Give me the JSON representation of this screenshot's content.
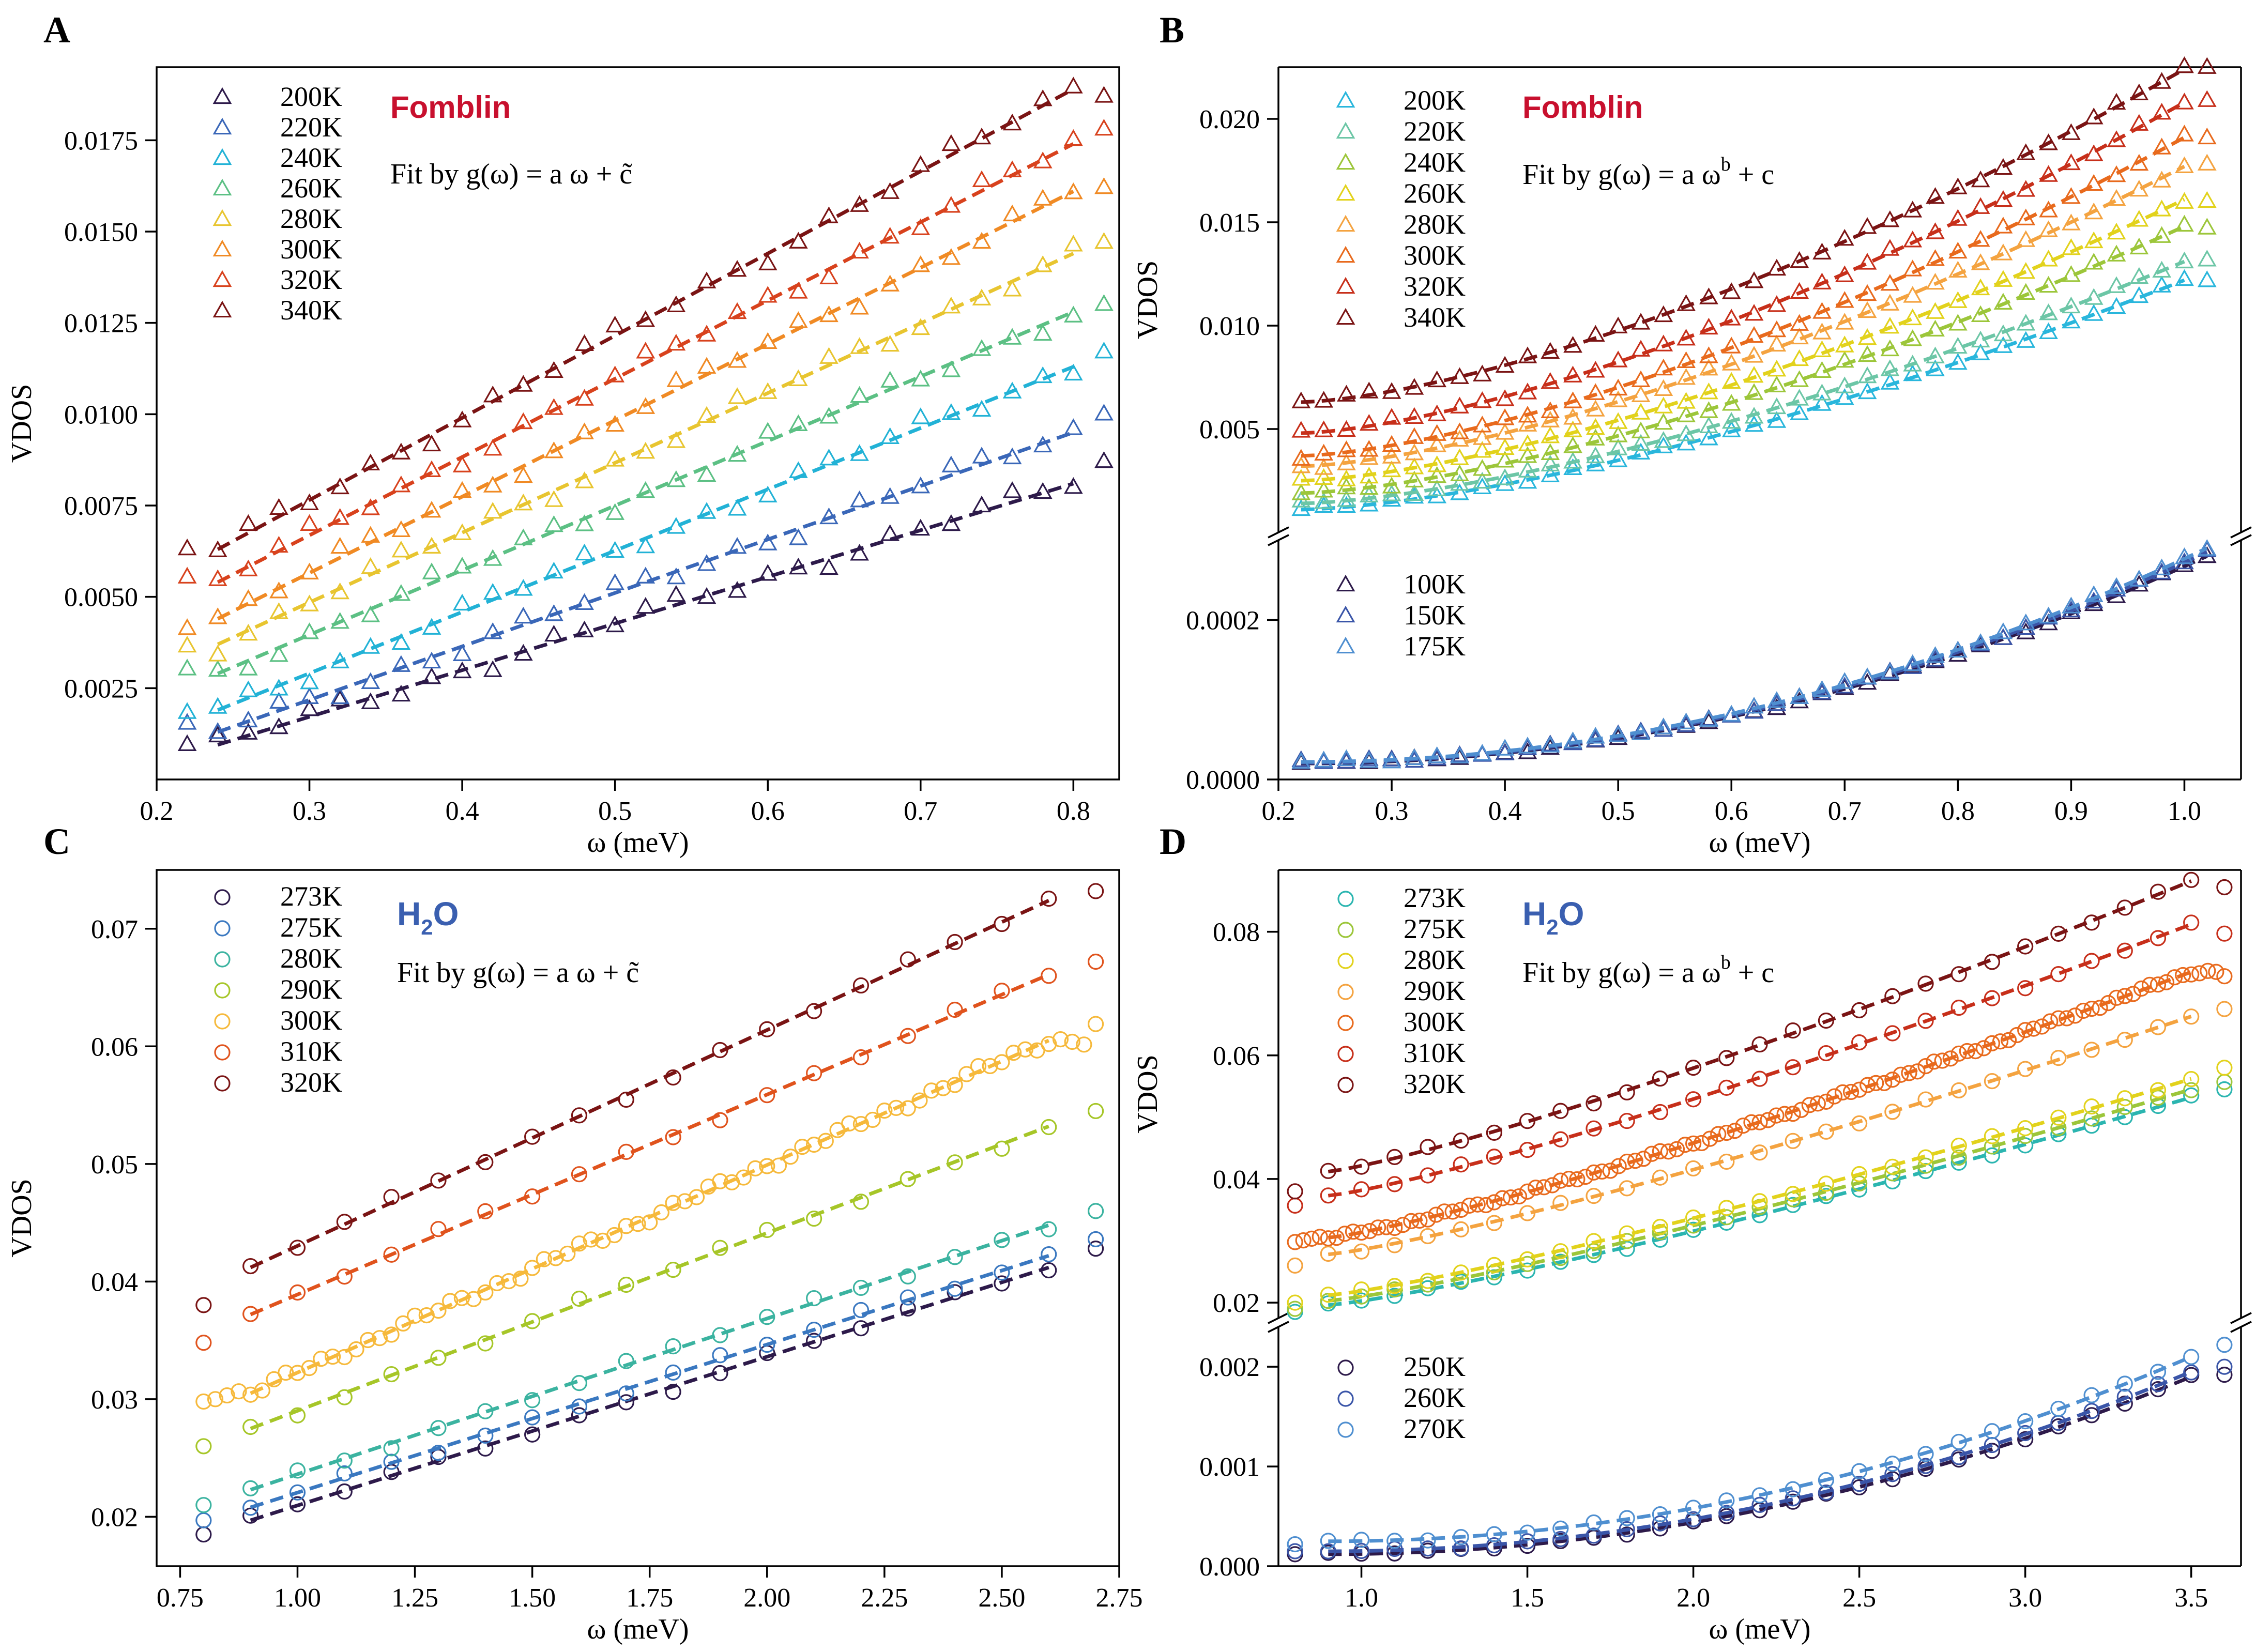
{
  "figure": {
    "panel_labels": [
      "A",
      "B",
      "C",
      "D"
    ]
  },
  "chart_data": [
    {
      "panel": "A",
      "type": "scatter",
      "marker": "triangle",
      "title": "Fomblin",
      "title_color": "#C8102E",
      "fit_text": "Fit by g(ω) = a ω + c̃",
      "xlabel": "ω (meV)",
      "ylabel": "VDOS",
      "xlim": [
        0.2,
        0.83
      ],
      "ylim": [
        0.0,
        0.0195
      ],
      "xticks": [
        0.2,
        0.3,
        0.4,
        0.5,
        0.6,
        0.7,
        0.8
      ],
      "xtick_labels": [
        "0.2",
        "0.3",
        "0.4",
        "0.5",
        "0.6",
        "0.7",
        "0.8"
      ],
      "yticks": [
        0.0025,
        0.005,
        0.0075,
        0.01,
        0.0125,
        0.015,
        0.0175
      ],
      "ytick_labels": [
        "0.0025",
        "0.0050",
        "0.0075",
        "0.0100",
        "0.0125",
        "0.0150",
        "0.0175"
      ],
      "x": {
        "start": 0.22,
        "end": 0.82,
        "step": 0.02
      },
      "fit_range": [
        0.24,
        0.8
      ],
      "series": [
        {
          "name": "200K",
          "color": "#2d1a4a",
          "y0": 0.00095,
          "y1": 0.0081,
          "mark_offset": 0.0003,
          "end_mark": 0.0087
        },
        {
          "name": "220K",
          "color": "#3a67b8",
          "y0": 0.0013,
          "y1": 0.0095,
          "mark_offset": 0.0003,
          "end_mark": 0.01
        },
        {
          "name": "240K",
          "color": "#22b2d6",
          "y0": 0.0019,
          "y1": 0.0113,
          "mark_offset": 0.0003,
          "end_mark": 0.0117
        },
        {
          "name": "260K",
          "color": "#5cc084",
          "y0": 0.0029,
          "y1": 0.0128,
          "mark_offset": 0.0003,
          "end_mark": 0.013
        },
        {
          "name": "280K",
          "color": "#e8c530",
          "y0": 0.0037,
          "y1": 0.0144,
          "mark_offset": 0.0003,
          "end_mark": 0.0147
        },
        {
          "name": "300K",
          "color": "#f08a24",
          "y0": 0.0044,
          "y1": 0.0161,
          "mark_offset": 0.0003,
          "end_mark": 0.0162
        },
        {
          "name": "320K",
          "color": "#d8421d",
          "y0": 0.0054,
          "y1": 0.0174,
          "mark_offset": 0.0003,
          "end_mark": 0.0178
        },
        {
          "name": "340K",
          "color": "#7a1414",
          "y0": 0.0063,
          "y1": 0.0189,
          "mark_offset": 0.0003,
          "end_mark": 0.0187
        }
      ]
    },
    {
      "panel": "B",
      "type": "scatter",
      "marker": "triangle",
      "title": "Fomblin",
      "title_color": "#C8102E",
      "fit_text": "Fit by g(ω) = a ω",
      "fit_sup": "b",
      "fit_tail": " + c",
      "xlabel": "ω (meV)",
      "ylabel": "VDOS",
      "xlim": [
        0.2,
        1.05
      ],
      "xticks": [
        0.2,
        0.3,
        0.4,
        0.5,
        0.6,
        0.7,
        0.8,
        0.9,
        1.0
      ],
      "xtick_labels": [
        "0.2",
        "0.3",
        "0.4",
        "0.5",
        "0.6",
        "0.7",
        "0.8",
        "0.9",
        "1.0"
      ],
      "upper": {
        "ylim": [
          0.0,
          0.0225
        ],
        "yticks": [
          0.005,
          0.01,
          0.015,
          0.02
        ],
        "ytick_labels": [
          "0.005",
          "0.010",
          "0.015",
          "0.020"
        ],
        "x": {
          "start": 0.22,
          "end": 1.02,
          "step": 0.02
        },
        "fit_range": [
          0.22,
          1.0
        ],
        "exponent": 1.5,
        "series": [
          {
            "name": "200K",
            "color": "#29b6dc",
            "y0": 0.0011,
            "y1": 0.0122
          },
          {
            "name": "220K",
            "color": "#6cc6a6",
            "y0": 0.0014,
            "y1": 0.0131
          },
          {
            "name": "240K",
            "color": "#9cc63a",
            "y0": 0.0019,
            "y1": 0.0148
          },
          {
            "name": "260K",
            "color": "#e2d21c",
            "y0": 0.0025,
            "y1": 0.0161
          },
          {
            "name": "280K",
            "color": "#f4a340",
            "y0": 0.0032,
            "y1": 0.0177
          },
          {
            "name": "300K",
            "color": "#e86a1d",
            "y0": 0.0037,
            "y1": 0.0191
          },
          {
            "name": "320K",
            "color": "#c72f1a",
            "y0": 0.0048,
            "y1": 0.0208
          },
          {
            "name": "340K",
            "color": "#7a1414",
            "y0": 0.0063,
            "y1": 0.0224
          }
        ]
      },
      "lower": {
        "ylim": [
          0.0,
          0.0003
        ],
        "yticks": [
          0.0,
          0.0002
        ],
        "ytick_labels": [
          "0.0000",
          "0.0002"
        ],
        "x": {
          "start": 0.22,
          "end": 1.02,
          "step": 0.02
        },
        "fit_range": [
          0.22,
          1.02
        ],
        "exponent": 2.0,
        "series": [
          {
            "name": "100K",
            "color": "#2d1a4a",
            "y0": 2e-05,
            "y1": 0.00028
          },
          {
            "name": "150K",
            "color": "#3a55a8",
            "y0": 2.1e-05,
            "y1": 0.000285
          },
          {
            "name": "175K",
            "color": "#4f8fd0",
            "y0": 2.2e-05,
            "y1": 0.00029
          }
        ]
      }
    },
    {
      "panel": "C",
      "type": "scatter",
      "marker": "circle",
      "title": "H₂O",
      "title_main": "H",
      "title_sub": "2",
      "title_tail": "O",
      "title_color": "#3a5fb0",
      "fit_text": "Fit by g(ω) = a ω + c̃",
      "xlabel": "ω (meV)",
      "ylabel": "VDOS",
      "xlim": [
        0.7,
        2.75
      ],
      "ylim": [
        0.0158,
        0.075
      ],
      "xticks": [
        0.75,
        1.0,
        1.25,
        1.5,
        1.75,
        2.0,
        2.25,
        2.5,
        2.75
      ],
      "xtick_labels": [
        "0.75",
        "1.00",
        "1.25",
        "1.50",
        "1.75",
        "2.00",
        "2.25",
        "2.50",
        "2.75"
      ],
      "yticks": [
        0.02,
        0.03,
        0.04,
        0.05,
        0.06,
        0.07
      ],
      "ytick_labels": [
        "0.02",
        "0.03",
        "0.04",
        "0.05",
        "0.06",
        "0.07"
      ],
      "fit_range": [
        0.9,
        2.6
      ],
      "series": [
        {
          "name": "273K",
          "color": "#2d1a4a",
          "y0": 0.0197,
          "y1": 0.0412,
          "first": 0.0185,
          "last": 0.0428,
          "step": 0.1
        },
        {
          "name": "275K",
          "color": "#3a78c0",
          "y0": 0.0208,
          "y1": 0.0422,
          "first": 0.0197,
          "last": 0.0436,
          "step": 0.1
        },
        {
          "name": "280K",
          "color": "#3bb3a0",
          "y0": 0.0223,
          "y1": 0.0448,
          "first": 0.021,
          "last": 0.046,
          "step": 0.1
        },
        {
          "name": "290K",
          "color": "#a6c628",
          "y0": 0.0275,
          "y1": 0.0532,
          "first": 0.026,
          "last": 0.0545,
          "step": 0.1
        },
        {
          "name": "300K",
          "color": "#f6b93b",
          "y0": 0.0305,
          "y1": 0.0605,
          "first": 0.0298,
          "last": 0.0619,
          "step": 0.025
        },
        {
          "name": "310K",
          "color": "#e0531d",
          "y0": 0.0372,
          "y1": 0.0661,
          "first": 0.0348,
          "last": 0.0672,
          "step": 0.1
        },
        {
          "name": "320K",
          "color": "#7a1414",
          "y0": 0.0412,
          "y1": 0.0724,
          "first": 0.038,
          "last": 0.0732,
          "step": 0.1
        }
      ]
    },
    {
      "panel": "D",
      "type": "scatter",
      "marker": "circle",
      "title": "H₂O",
      "title_main": "H",
      "title_sub": "2",
      "title_tail": "O",
      "title_color": "#3a5fb0",
      "fit_text": "Fit by g(ω) = a ω",
      "fit_sup": "b",
      "fit_tail": " + c",
      "xlabel": "ω (meV)",
      "ylabel": "VDOS",
      "xlim": [
        0.75,
        3.65
      ],
      "xticks": [
        1.0,
        1.5,
        2.0,
        2.5,
        3.0,
        3.5
      ],
      "xtick_labels": [
        "1.0",
        "1.5",
        "2.0",
        "2.5",
        "3.0",
        "3.5"
      ],
      "upper": {
        "ylim": [
          0.0175,
          0.09
        ],
        "yticks": [
          0.02,
          0.04,
          0.06,
          0.08
        ],
        "ytick_labels": [
          "0.02",
          "0.04",
          "0.06",
          "0.08"
        ],
        "fit_range": [
          0.9,
          3.5
        ],
        "exponent": 1.2,
        "series": [
          {
            "name": "273K",
            "color": "#2bb5b0",
            "y0": 0.0196,
            "y1": 0.0532,
            "first": 0.0185,
            "last": 0.0545,
            "step": 0.1
          },
          {
            "name": "275K",
            "color": "#9cc63a",
            "y0": 0.0203,
            "y1": 0.0545,
            "first": 0.019,
            "last": 0.0557,
            "step": 0.1
          },
          {
            "name": "280K",
            "color": "#e2d21c",
            "y0": 0.0212,
            "y1": 0.0562,
            "first": 0.02,
            "last": 0.058,
            "step": 0.1
          },
          {
            "name": "290K",
            "color": "#f4a340",
            "y0": 0.0278,
            "y1": 0.0663,
            "first": 0.026,
            "last": 0.0675,
            "step": 0.1
          },
          {
            "name": "300K",
            "color": "#e86a1d",
            "y0": 0.0305,
            "y1": 0.0735,
            "first": 0.0298,
            "last": 0.0728,
            "step": 0.025
          },
          {
            "name": "310K",
            "color": "#c72f1a",
            "y0": 0.0373,
            "y1": 0.0812,
            "first": 0.0357,
            "last": 0.0797,
            "step": 0.1
          },
          {
            "name": "320K",
            "color": "#7a1414",
            "y0": 0.0412,
            "y1": 0.0882,
            "first": 0.038,
            "last": 0.0872,
            "step": 0.1
          }
        ]
      },
      "lower": {
        "ylim": [
          0.0,
          0.0024
        ],
        "yticks": [
          0.0,
          0.001,
          0.002
        ],
        "ytick_labels": [
          "0.000",
          "0.001",
          "0.002"
        ],
        "fit_range": [
          0.9,
          3.5
        ],
        "exponent": 2.0,
        "series": [
          {
            "name": "250K",
            "color": "#2d1a4a",
            "y0": 0.00012,
            "y1": 0.0019,
            "first": 0.00012,
            "last": 0.00192,
            "step": 0.1
          },
          {
            "name": "260K",
            "color": "#3a55a8",
            "y0": 0.00015,
            "y1": 0.00195,
            "first": 0.00015,
            "last": 0.002,
            "step": 0.1
          },
          {
            "name": "270K",
            "color": "#4f8fd0",
            "y0": 0.00025,
            "y1": 0.0021,
            "first": 0.00022,
            "last": 0.00222,
            "step": 0.1
          }
        ]
      }
    }
  ]
}
